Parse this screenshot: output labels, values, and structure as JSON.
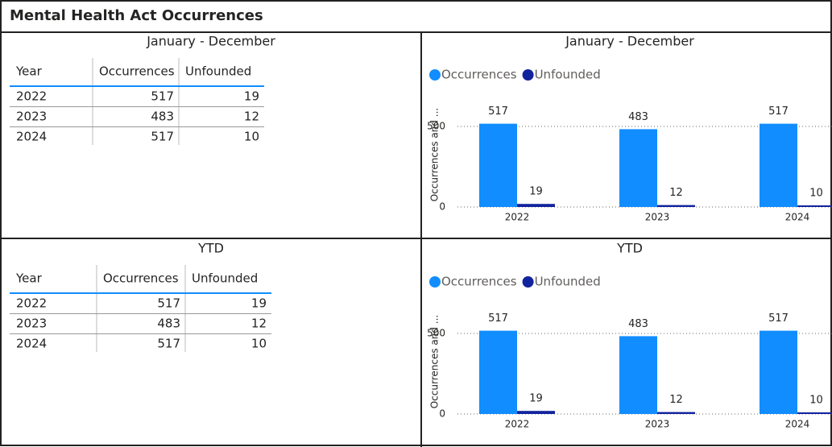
{
  "header": {
    "title": "Mental Health Act Occurrences"
  },
  "tables": [
    {
      "title": "January - December",
      "columns": [
        "Year",
        "Occurrences",
        "Unfounded"
      ],
      "rows": [
        [
          "2022",
          517,
          19
        ],
        [
          "2023",
          483,
          12
        ],
        [
          "2024",
          517,
          10
        ]
      ]
    },
    {
      "title": "YTD",
      "columns": [
        "Year",
        "Occurrences",
        "Unfounded"
      ],
      "rows": [
        [
          "2022",
          517,
          19
        ],
        [
          "2023",
          483,
          12
        ],
        [
          "2024",
          517,
          10
        ]
      ]
    }
  ],
  "chart_data": [
    {
      "type": "bar",
      "title": "January - December",
      "y_label": "Occurrences and ...",
      "categories": [
        "2022",
        "2023",
        "2024"
      ],
      "series": [
        {
          "name": "Occurrences",
          "color": "#118dff",
          "values": [
            517,
            483,
            517
          ]
        },
        {
          "name": "Unfounded",
          "color": "#12239e",
          "values": [
            19,
            12,
            10
          ]
        }
      ],
      "ylim": [
        0,
        650
      ],
      "yticks": [
        0,
        500
      ],
      "grid": true,
      "legend": "top-left"
    },
    {
      "type": "bar",
      "title": "YTD",
      "y_label": "Occurrences and ...",
      "categories": [
        "2022",
        "2023",
        "2024"
      ],
      "series": [
        {
          "name": "Occurrences",
          "color": "#118dff",
          "values": [
            517,
            483,
            517
          ]
        },
        {
          "name": "Unfounded",
          "color": "#12239e",
          "values": [
            19,
            12,
            10
          ]
        }
      ],
      "ylim": [
        0,
        650
      ],
      "yticks": [
        0,
        500
      ],
      "grid": true,
      "legend": "top-left"
    }
  ]
}
